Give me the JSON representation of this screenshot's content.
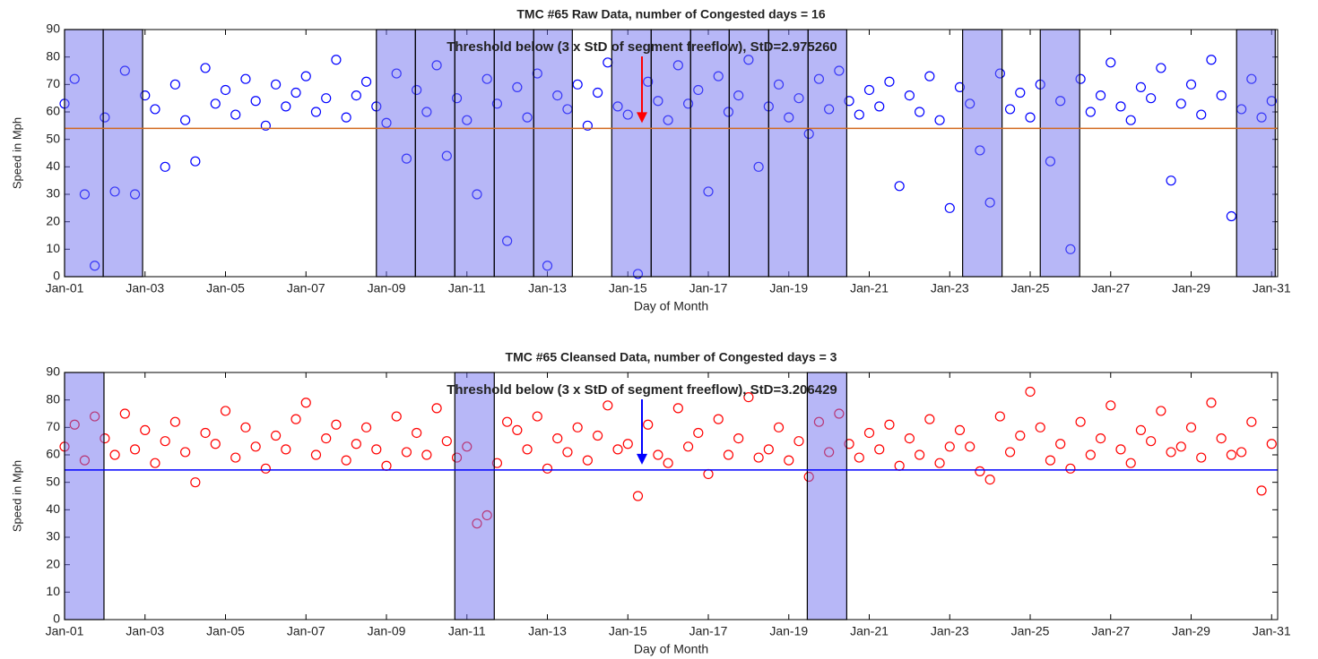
{
  "chart_data": [
    {
      "type": "scatter",
      "title": "TMC #65 Raw Data, number of Congested days = 16",
      "annotation": "Threshold below (3 x StD of segment freeflow), StD=2.975260",
      "annotation_color": "#ff0000",
      "xlabel": "Day of Month",
      "ylabel": "Speed in Mph",
      "color": "#0000ff",
      "x": [
        1,
        1.25,
        1.5,
        1.75,
        2,
        2.25,
        2.5,
        2.75,
        3,
        3.25,
        3.5,
        3.75,
        4,
        4.25,
        4.5,
        4.75,
        5,
        5.25,
        5.5,
        5.75,
        6,
        6.25,
        6.5,
        6.75,
        7,
        7.25,
        7.5,
        7.75,
        8,
        8.25,
        8.5,
        8.75,
        9,
        9.25,
        9.5,
        9.75,
        10,
        10.25,
        10.5,
        10.75,
        11,
        11.25,
        11.5,
        11.75,
        12,
        12.25,
        12.5,
        12.75,
        13,
        13.25,
        13.5,
        13.75,
        14,
        14.25,
        14.5,
        14.75,
        15,
        15.25,
        15.5,
        15.75,
        16,
        16.25,
        16.5,
        16.75,
        17,
        17.25,
        17.5,
        17.75,
        18,
        18.25,
        18.5,
        18.75,
        19,
        19.25,
        19.5,
        19.75,
        20,
        20.25,
        20.5,
        20.75,
        21,
        21.25,
        21.5,
        21.75,
        22,
        22.25,
        22.5,
        22.75,
        23,
        23.25,
        23.5,
        23.75,
        24,
        24.25,
        24.5,
        24.75,
        25,
        25.25,
        25.5,
        25.75,
        26,
        26.25,
        26.5,
        26.75,
        27,
        27.25,
        27.5,
        27.75,
        28,
        28.25,
        28.5,
        28.75,
        29,
        29.25,
        29.5,
        29.75,
        30,
        30.25,
        30.5,
        30.75,
        31
      ],
      "values": [
        63,
        72,
        30,
        4,
        58,
        31,
        75,
        30,
        66,
        61,
        40,
        70,
        57,
        42,
        76,
        63,
        68,
        59,
        72,
        64,
        55,
        70,
        62,
        67,
        73,
        60,
        65,
        79,
        58,
        66,
        71,
        62,
        56,
        74,
        43,
        68,
        60,
        77,
        44,
        65,
        57,
        30,
        72,
        63,
        13,
        69,
        58,
        74,
        4,
        66,
        61,
        70,
        55,
        67,
        78,
        62,
        59,
        1,
        71,
        64,
        57,
        77,
        63,
        68,
        31,
        73,
        60,
        66,
        79,
        40,
        62,
        70,
        58,
        65,
        52,
        72,
        61,
        75,
        64,
        59,
        68,
        62,
        71,
        33,
        66,
        60,
        73,
        57,
        25,
        69,
        63,
        46,
        27,
        74,
        61,
        67,
        58,
        70,
        42,
        64,
        10,
        72,
        60,
        66,
        78,
        62,
        57,
        69,
        65,
        76,
        35,
        63,
        70,
        59,
        79,
        66,
        22,
        61,
        72,
        58,
        64
      ],
      "bands": [
        [
          1,
          1.96
        ],
        [
          1.96,
          2.94
        ],
        [
          8.75,
          9.72
        ],
        [
          9.72,
          10.7
        ],
        [
          10.7,
          11.68
        ],
        [
          11.68,
          12.66
        ],
        [
          12.66,
          13.62
        ],
        [
          14.6,
          15.58
        ],
        [
          15.58,
          16.56
        ],
        [
          16.56,
          17.52
        ],
        [
          17.52,
          18.5
        ],
        [
          18.5,
          19.48
        ],
        [
          19.48,
          20.44
        ],
        [
          23.32,
          24.3
        ],
        [
          25.25,
          26.23
        ],
        [
          30.13,
          31.09
        ]
      ],
      "band_color": "#6f6ff0",
      "threshold": 54,
      "threshold_color": "#d2691e",
      "xlim": [
        1,
        31.15
      ],
      "ylim": [
        0,
        90
      ],
      "xticks": [
        {
          "value": 1,
          "label": "Jan-01"
        },
        {
          "value": 3,
          "label": "Jan-03"
        },
        {
          "value": 5,
          "label": "Jan-05"
        },
        {
          "value": 7,
          "label": "Jan-07"
        },
        {
          "value": 9,
          "label": "Jan-09"
        },
        {
          "value": 11,
          "label": "Jan-11"
        },
        {
          "value": 13,
          "label": "Jan-13"
        },
        {
          "value": 15,
          "label": "Jan-15"
        },
        {
          "value": 17,
          "label": "Jan-17"
        },
        {
          "value": 19,
          "label": "Jan-19"
        },
        {
          "value": 21,
          "label": "Jan-21"
        },
        {
          "value": 23,
          "label": "Jan-23"
        },
        {
          "value": 25,
          "label": "Jan-25"
        },
        {
          "value": 27,
          "label": "Jan-27"
        },
        {
          "value": 29,
          "label": "Jan-29"
        },
        {
          "value": 31,
          "label": "Jan-31"
        }
      ],
      "yticks": [
        0,
        10,
        20,
        30,
        40,
        50,
        60,
        70,
        80,
        90
      ]
    },
    {
      "type": "scatter",
      "title": "TMC #65 Cleansed Data, number of Congested days = 3",
      "annotation": "Threshold below (3 x StD of segment freeflow), StD=3.206429",
      "annotation_color": "#0000ff",
      "xlabel": "Day of Month",
      "ylabel": "Speed in Mph",
      "color": "#ff0000",
      "x": [
        1,
        1.25,
        1.5,
        1.75,
        2,
        2.25,
        2.5,
        2.75,
        3,
        3.25,
        3.5,
        3.75,
        4,
        4.25,
        4.5,
        4.75,
        5,
        5.25,
        5.5,
        5.75,
        6,
        6.25,
        6.5,
        6.75,
        7,
        7.25,
        7.5,
        7.75,
        8,
        8.25,
        8.5,
        8.75,
        9,
        9.25,
        9.5,
        9.75,
        10,
        10.25,
        10.5,
        10.75,
        11,
        11.25,
        11.5,
        11.75,
        12,
        12.25,
        12.5,
        12.75,
        13,
        13.25,
        13.5,
        13.75,
        14,
        14.25,
        14.5,
        14.75,
        15,
        15.25,
        15.5,
        15.75,
        16,
        16.25,
        16.5,
        16.75,
        17,
        17.25,
        17.5,
        17.75,
        18,
        18.25,
        18.5,
        18.75,
        19,
        19.25,
        19.5,
        19.75,
        20,
        20.25,
        20.5,
        20.75,
        21,
        21.25,
        21.5,
        21.75,
        22,
        22.25,
        22.5,
        22.75,
        23,
        23.25,
        23.5,
        23.75,
        24,
        24.25,
        24.5,
        24.75,
        25,
        25.25,
        25.5,
        25.75,
        26,
        26.25,
        26.5,
        26.75,
        27,
        27.25,
        27.5,
        27.75,
        28,
        28.25,
        28.5,
        28.75,
        29,
        29.25,
        29.5,
        29.75,
        30,
        30.25,
        30.5,
        30.75,
        31
      ],
      "values": [
        63,
        71,
        58,
        74,
        66,
        60,
        75,
        62,
        69,
        57,
        65,
        72,
        61,
        50,
        68,
        64,
        76,
        59,
        70,
        63,
        55,
        67,
        62,
        73,
        79,
        60,
        66,
        71,
        58,
        64,
        70,
        62,
        56,
        74,
        61,
        68,
        60,
        77,
        65,
        59,
        63,
        35,
        38,
        57,
        72,
        69,
        62,
        74,
        55,
        66,
        61,
        70,
        58,
        67,
        78,
        62,
        64,
        45,
        71,
        60,
        57,
        77,
        63,
        68,
        53,
        73,
        60,
        66,
        81,
        59,
        62,
        70,
        58,
        65,
        52,
        72,
        61,
        75,
        64,
        59,
        68,
        62,
        71,
        56,
        66,
        60,
        73,
        57,
        63,
        69,
        63,
        54,
        51,
        74,
        61,
        67,
        83,
        70,
        58,
        64,
        55,
        72,
        60,
        66,
        78,
        62,
        57,
        69,
        65,
        76,
        61,
        63,
        70,
        59,
        79,
        66,
        60,
        61,
        72,
        47,
        64
      ],
      "bands": [
        [
          1,
          1.98
        ],
        [
          10.7,
          11.68
        ],
        [
          19.46,
          20.44
        ]
      ],
      "band_color": "#6f6ff0",
      "threshold": 54.5,
      "threshold_color": "#0000ff",
      "xlim": [
        1,
        31.15
      ],
      "ylim": [
        0,
        90
      ],
      "xticks": [
        {
          "value": 1,
          "label": "Jan-01"
        },
        {
          "value": 3,
          "label": "Jan-03"
        },
        {
          "value": 5,
          "label": "Jan-05"
        },
        {
          "value": 7,
          "label": "Jan-07"
        },
        {
          "value": 9,
          "label": "Jan-09"
        },
        {
          "value": 11,
          "label": "Jan-11"
        },
        {
          "value": 13,
          "label": "Jan-13"
        },
        {
          "value": 15,
          "label": "Jan-15"
        },
        {
          "value": 17,
          "label": "Jan-17"
        },
        {
          "value": 19,
          "label": "Jan-19"
        },
        {
          "value": 21,
          "label": "Jan-21"
        },
        {
          "value": 23,
          "label": "Jan-23"
        },
        {
          "value": 25,
          "label": "Jan-25"
        },
        {
          "value": 27,
          "label": "Jan-27"
        },
        {
          "value": 29,
          "label": "Jan-29"
        },
        {
          "value": 31,
          "label": "Jan-31"
        }
      ],
      "yticks": [
        0,
        10,
        20,
        30,
        40,
        50,
        60,
        70,
        80,
        90
      ]
    }
  ]
}
